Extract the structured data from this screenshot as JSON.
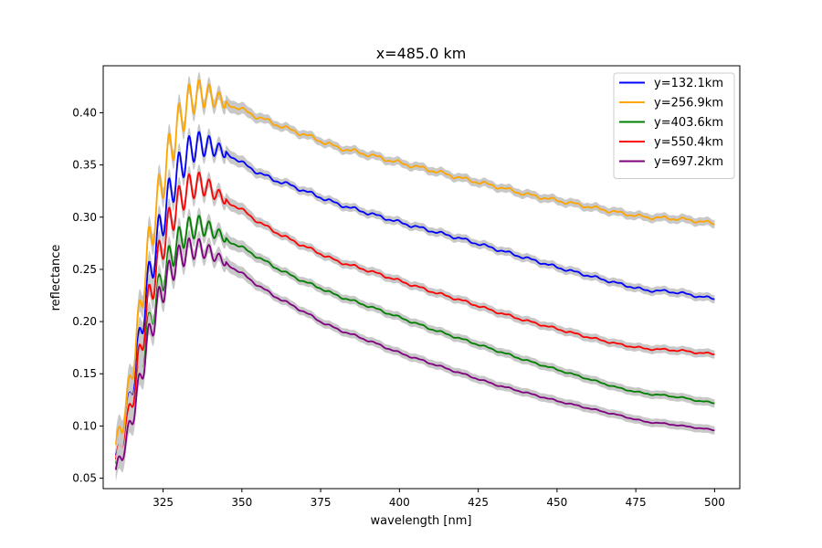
{
  "chart_data": {
    "type": "line",
    "title": "x=485.0 km",
    "xlabel": "wavelength [nm]",
    "ylabel": "reflectance",
    "xlim": [
      306,
      508
    ],
    "ylim": [
      0.04,
      0.445
    ],
    "xticks": [
      325,
      350,
      375,
      400,
      425,
      450,
      475,
      500
    ],
    "xtick_labels": [
      "325",
      "350",
      "375",
      "400",
      "425",
      "450",
      "475",
      "500"
    ],
    "yticks": [
      0.05,
      0.1,
      0.15,
      0.2,
      0.25,
      0.3,
      0.35,
      0.4
    ],
    "ytick_labels": [
      "0.05",
      "0.10",
      "0.15",
      "0.20",
      "0.25",
      "0.30",
      "0.35",
      "0.40"
    ],
    "grid": false,
    "legend_position": "top-right",
    "uncertainty_band_color": "#c8c8c8",
    "x_range": [
      310,
      500
    ],
    "series": [
      {
        "name": "y=132.1km",
        "color": "#0000ff",
        "points": [
          [
            310,
            0.072
          ],
          [
            312,
            0.088
          ],
          [
            314,
            0.118
          ],
          [
            316,
            0.15
          ],
          [
            318,
            0.192
          ],
          [
            320,
            0.232
          ],
          [
            322,
            0.262
          ],
          [
            325,
            0.3
          ],
          [
            328,
            0.33
          ],
          [
            331,
            0.352
          ],
          [
            334,
            0.366
          ],
          [
            337,
            0.37
          ],
          [
            340,
            0.368
          ],
          [
            343,
            0.364
          ],
          [
            346,
            0.36
          ],
          [
            350,
            0.352
          ],
          [
            355,
            0.343
          ],
          [
            360,
            0.336
          ],
          [
            365,
            0.331
          ],
          [
            370,
            0.325
          ],
          [
            375,
            0.319
          ],
          [
            380,
            0.313
          ],
          [
            390,
            0.304
          ],
          [
            400,
            0.295
          ],
          [
            410,
            0.287
          ],
          [
            420,
            0.279
          ],
          [
            430,
            0.27
          ],
          [
            440,
            0.261
          ],
          [
            450,
            0.252
          ],
          [
            460,
            0.244
          ],
          [
            470,
            0.236
          ],
          [
            478,
            0.23
          ],
          [
            485,
            0.229
          ],
          [
            490,
            0.227
          ],
          [
            495,
            0.224
          ],
          [
            500,
            0.222
          ]
        ]
      },
      {
        "name": "y=256.9km",
        "color": "#ffa500",
        "points": [
          [
            310,
            0.082
          ],
          [
            312,
            0.1
          ],
          [
            314,
            0.132
          ],
          [
            316,
            0.17
          ],
          [
            318,
            0.218
          ],
          [
            320,
            0.262
          ],
          [
            322,
            0.296
          ],
          [
            325,
            0.338
          ],
          [
            328,
            0.372
          ],
          [
            331,
            0.398
          ],
          [
            334,
            0.414
          ],
          [
            337,
            0.418
          ],
          [
            340,
            0.416
          ],
          [
            343,
            0.412
          ],
          [
            346,
            0.408
          ],
          [
            350,
            0.403
          ],
          [
            355,
            0.396
          ],
          [
            360,
            0.39
          ],
          [
            365,
            0.384
          ],
          [
            370,
            0.379
          ],
          [
            375,
            0.373
          ],
          [
            380,
            0.367
          ],
          [
            390,
            0.36
          ],
          [
            400,
            0.352
          ],
          [
            410,
            0.345
          ],
          [
            420,
            0.337
          ],
          [
            430,
            0.33
          ],
          [
            440,
            0.322
          ],
          [
            450,
            0.316
          ],
          [
            460,
            0.31
          ],
          [
            470,
            0.304
          ],
          [
            478,
            0.3
          ],
          [
            485,
            0.299
          ],
          [
            490,
            0.298
          ],
          [
            495,
            0.296
          ],
          [
            500,
            0.294
          ]
        ]
      },
      {
        "name": "y=403.6km",
        "color": "#008000",
        "points": [
          [
            310,
            0.064
          ],
          [
            312,
            0.078
          ],
          [
            314,
            0.1
          ],
          [
            316,
            0.124
          ],
          [
            318,
            0.156
          ],
          [
            320,
            0.188
          ],
          [
            322,
            0.212
          ],
          [
            325,
            0.244
          ],
          [
            328,
            0.266
          ],
          [
            331,
            0.282
          ],
          [
            334,
            0.29
          ],
          [
            337,
            0.292
          ],
          [
            340,
            0.288
          ],
          [
            343,
            0.283
          ],
          [
            346,
            0.277
          ],
          [
            350,
            0.271
          ],
          [
            355,
            0.262
          ],
          [
            360,
            0.253
          ],
          [
            365,
            0.245
          ],
          [
            370,
            0.238
          ],
          [
            375,
            0.232
          ],
          [
            380,
            0.225
          ],
          [
            390,
            0.215
          ],
          [
            400,
            0.204
          ],
          [
            410,
            0.193
          ],
          [
            420,
            0.183
          ],
          [
            430,
            0.173
          ],
          [
            440,
            0.163
          ],
          [
            450,
            0.154
          ],
          [
            460,
            0.145
          ],
          [
            470,
            0.136
          ],
          [
            478,
            0.131
          ],
          [
            485,
            0.129
          ],
          [
            490,
            0.127
          ],
          [
            495,
            0.124
          ],
          [
            500,
            0.122
          ]
        ]
      },
      {
        "name": "y=550.4km",
        "color": "#ff0000",
        "points": [
          [
            310,
            0.068
          ],
          [
            312,
            0.082
          ],
          [
            314,
            0.108
          ],
          [
            316,
            0.138
          ],
          [
            318,
            0.176
          ],
          [
            320,
            0.212
          ],
          [
            322,
            0.24
          ],
          [
            325,
            0.276
          ],
          [
            328,
            0.302
          ],
          [
            331,
            0.32
          ],
          [
            334,
            0.33
          ],
          [
            337,
            0.332
          ],
          [
            340,
            0.327
          ],
          [
            343,
            0.32
          ],
          [
            346,
            0.314
          ],
          [
            350,
            0.307
          ],
          [
            355,
            0.296
          ],
          [
            360,
            0.287
          ],
          [
            365,
            0.279
          ],
          [
            370,
            0.272
          ],
          [
            375,
            0.265
          ],
          [
            380,
            0.258
          ],
          [
            390,
            0.249
          ],
          [
            400,
            0.239
          ],
          [
            410,
            0.229
          ],
          [
            420,
            0.22
          ],
          [
            430,
            0.21
          ],
          [
            440,
            0.201
          ],
          [
            450,
            0.193
          ],
          [
            460,
            0.185
          ],
          [
            470,
            0.178
          ],
          [
            478,
            0.174
          ],
          [
            485,
            0.173
          ],
          [
            490,
            0.172
          ],
          [
            495,
            0.17
          ],
          [
            500,
            0.169
          ]
        ]
      },
      {
        "name": "y=697.2km",
        "color": "#800080",
        "points": [
          [
            310,
            0.058
          ],
          [
            312,
            0.072
          ],
          [
            314,
            0.094
          ],
          [
            316,
            0.118
          ],
          [
            318,
            0.148
          ],
          [
            320,
            0.178
          ],
          [
            322,
            0.202
          ],
          [
            325,
            0.232
          ],
          [
            328,
            0.252
          ],
          [
            331,
            0.264
          ],
          [
            334,
            0.27
          ],
          [
            337,
            0.27
          ],
          [
            340,
            0.266
          ],
          [
            343,
            0.26
          ],
          [
            346,
            0.254
          ],
          [
            350,
            0.246
          ],
          [
            355,
            0.235
          ],
          [
            360,
            0.225
          ],
          [
            365,
            0.217
          ],
          [
            370,
            0.209
          ],
          [
            375,
            0.2
          ],
          [
            380,
            0.193
          ],
          [
            390,
            0.182
          ],
          [
            400,
            0.17
          ],
          [
            410,
            0.16
          ],
          [
            420,
            0.15
          ],
          [
            430,
            0.14
          ],
          [
            440,
            0.132
          ],
          [
            450,
            0.124
          ],
          [
            460,
            0.117
          ],
          [
            470,
            0.11
          ],
          [
            478,
            0.104
          ],
          [
            485,
            0.102
          ],
          [
            490,
            0.1
          ],
          [
            495,
            0.098
          ],
          [
            500,
            0.096
          ]
        ]
      }
    ]
  }
}
